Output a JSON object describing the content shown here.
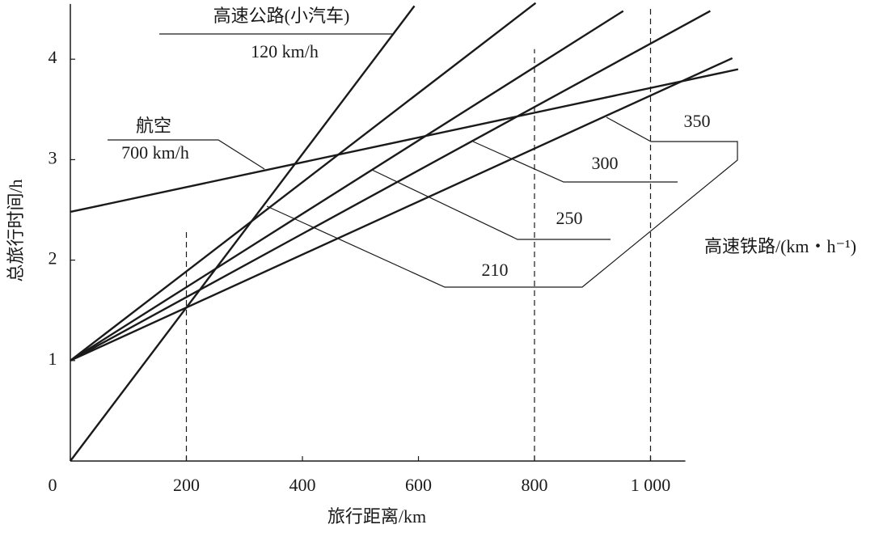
{
  "chart_data": {
    "type": "line",
    "x_label": "旅行距离/km",
    "y_label": "总旅行时间/h",
    "xlim": [
      0,
      1060
    ],
    "ylim": [
      0,
      4.55
    ],
    "xticks": [
      0,
      200,
      400,
      600,
      800,
      {
        "value": 1000,
        "label": "1 000"
      }
    ],
    "yticks": [
      1,
      2,
      3,
      4
    ],
    "reference_lines": [
      {
        "x": 200,
        "y_top": 2.31
      },
      {
        "x": 800,
        "y_top": 4.1
      },
      {
        "x": 1000,
        "y_top": 4.52
      }
    ],
    "rail_group_label": "高速铁路/(km・h⁻¹)",
    "series": [
      {
        "name": "高速公路(小汽车)",
        "speed_label": "120 km/h",
        "color": "#1a1a1a",
        "x": [
          0,
          593
        ],
        "values": [
          0,
          4.53
        ]
      },
      {
        "name": "航空",
        "speed_label": "700 km/h",
        "color": "#1a1a1a",
        "x": [
          0,
          1151
        ],
        "values": [
          2.48,
          3.9
        ]
      },
      {
        "name": "210",
        "color": "#1a1a1a",
        "x": [
          0,
          802
        ],
        "values": [
          1,
          4.56
        ]
      },
      {
        "name": "250",
        "color": "#1a1a1a",
        "x": [
          0,
          953
        ],
        "values": [
          1,
          4.48
        ]
      },
      {
        "name": "300",
        "color": "#1a1a1a",
        "x": [
          0,
          1103
        ],
        "values": [
          1,
          4.48
        ]
      },
      {
        "name": "350",
        "color": "#1a1a1a",
        "x": [
          0,
          1141
        ],
        "values": [
          1,
          4.01
        ]
      }
    ]
  }
}
